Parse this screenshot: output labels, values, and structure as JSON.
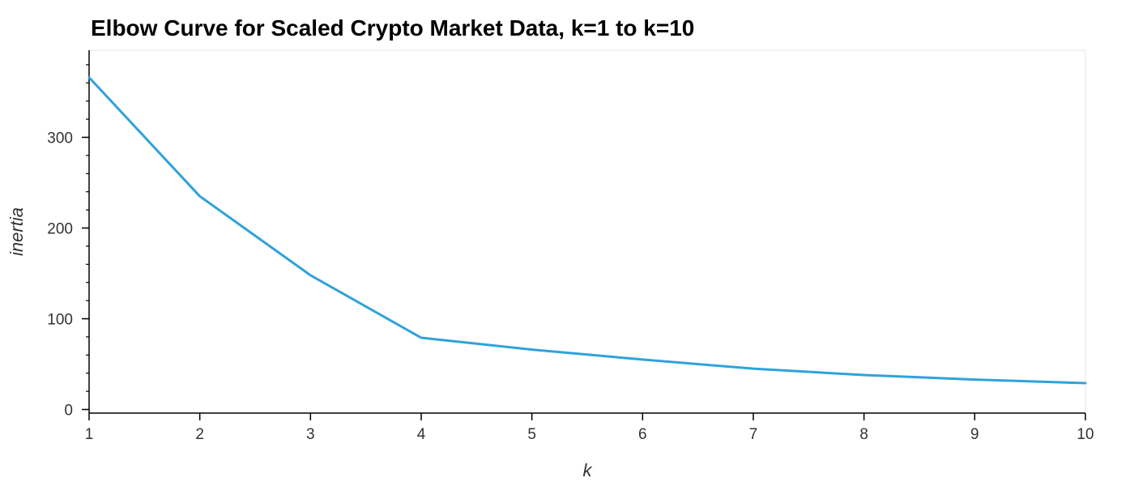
{
  "chart_data": {
    "type": "line",
    "title": "Elbow Curve for Scaled Crypto Market Data, k=1 to k=10",
    "xlabel": "k",
    "ylabel": "inertia",
    "x": [
      1,
      2,
      3,
      4,
      5,
      6,
      7,
      8,
      9,
      10
    ],
    "series": [
      {
        "values": [
          366,
          235,
          148,
          79,
          66,
          55,
          45,
          38,
          33,
          29
        ],
        "color": "#30a2da"
      }
    ],
    "xlim": [
      1,
      10
    ],
    "ylim": [
      -4,
      396
    ],
    "x_ticks": [
      1,
      2,
      3,
      4,
      5,
      6,
      7,
      8,
      9,
      10
    ],
    "y_ticks": [
      0,
      100,
      200,
      300
    ],
    "y_minor_step": 20,
    "grid": false,
    "legend": "none"
  }
}
